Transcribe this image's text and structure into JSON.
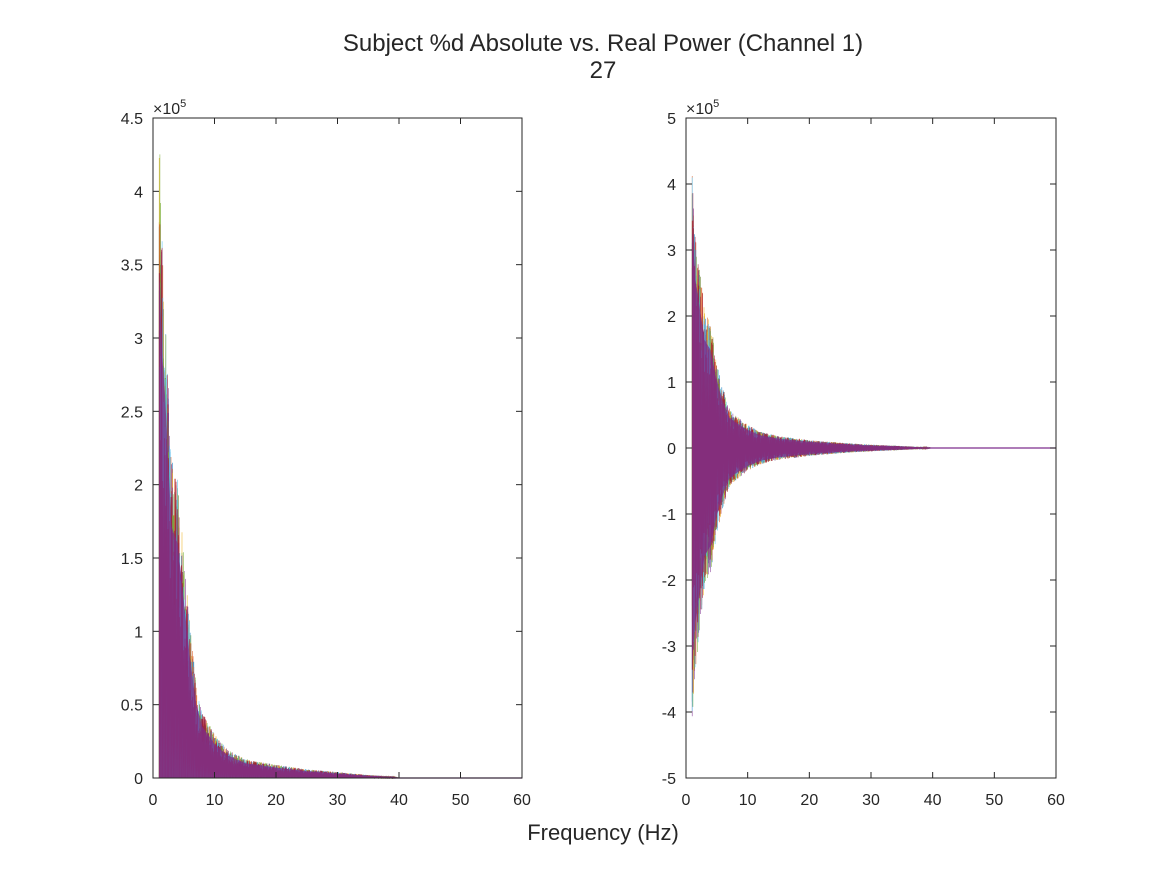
{
  "figure": {
    "title_line1": "Subject %d Absolute vs. Real Power (Channel 1)",
    "title_line2": "27",
    "xlabel": "Frequency (Hz)"
  },
  "colors": {
    "axis": "#262626",
    "series": [
      "#0072BD",
      "#D95319",
      "#EDB120",
      "#7E2F8E",
      "#77AC30",
      "#4DBEEE",
      "#A2142F"
    ],
    "fill": "#7E2F8E"
  },
  "chart_data": [
    {
      "type": "line",
      "subplot": "left",
      "description_of_series": "many overlapping multicolored traces of absolute power vs frequency",
      "xlim": [
        0,
        60
      ],
      "ylim": [
        0,
        4.5
      ],
      "y_exponent_label": "×10",
      "y_exponent_power": "5",
      "xticks": [
        0,
        10,
        20,
        30,
        40,
        50,
        60
      ],
      "xtick_labels": [
        "0",
        "10",
        "20",
        "30",
        "40",
        "50",
        "60"
      ],
      "yticks": [
        0,
        0.5,
        1,
        1.5,
        2,
        2.5,
        3,
        3.5,
        4,
        4.5
      ],
      "ytick_labels": [
        "0",
        "0.5",
        "1",
        "1.5",
        "2",
        "2.5",
        "3",
        "3.5",
        "4",
        "4.5"
      ],
      "envelope": {
        "x": [
          1,
          1.5,
          2,
          3,
          4,
          5,
          6,
          7,
          8,
          10,
          12,
          15,
          20,
          25,
          30,
          35,
          39,
          40,
          60
        ],
        "upper": [
          4.45,
          3.7,
          3.3,
          2.2,
          2.05,
          1.55,
          1.05,
          0.65,
          0.45,
          0.3,
          0.2,
          0.13,
          0.09,
          0.06,
          0.04,
          0.02,
          0.01,
          0.0,
          0.0
        ],
        "lower": [
          0,
          0,
          0,
          0,
          0,
          0,
          0,
          0,
          0,
          0,
          0,
          0,
          0,
          0,
          0,
          0,
          0,
          0,
          0
        ]
      }
    },
    {
      "type": "line",
      "subplot": "right",
      "description_of_series": "many overlapping multicolored traces of real power vs frequency",
      "xlim": [
        0,
        60
      ],
      "ylim": [
        -5,
        5
      ],
      "y_exponent_label": "×10",
      "y_exponent_power": "5",
      "xticks": [
        0,
        10,
        20,
        30,
        40,
        50,
        60
      ],
      "xtick_labels": [
        "0",
        "10",
        "20",
        "30",
        "40",
        "50",
        "60"
      ],
      "yticks": [
        -5,
        -4,
        -3,
        -2,
        -1,
        0,
        1,
        2,
        3,
        4,
        5
      ],
      "ytick_labels": [
        "-5",
        "-4",
        "-3",
        "-2",
        "-1",
        "0",
        "1",
        "2",
        "3",
        "4",
        "5"
      ],
      "envelope": {
        "x": [
          1,
          1.5,
          2,
          3,
          4,
          5,
          6,
          7,
          8,
          10,
          12,
          15,
          20,
          25,
          30,
          35,
          39,
          40,
          60
        ],
        "upper": [
          4.3,
          3.3,
          2.9,
          2.1,
          1.9,
          1.3,
          0.9,
          0.6,
          0.5,
          0.35,
          0.25,
          0.18,
          0.12,
          0.08,
          0.05,
          0.03,
          0.01,
          0.0,
          0.0
        ],
        "lower": [
          -4.15,
          -3.4,
          -3.0,
          -2.1,
          -1.9,
          -1.3,
          -0.9,
          -0.6,
          -0.5,
          -0.35,
          -0.25,
          -0.18,
          -0.12,
          -0.08,
          -0.05,
          -0.03,
          -0.01,
          0.0,
          0.0
        ]
      }
    }
  ]
}
